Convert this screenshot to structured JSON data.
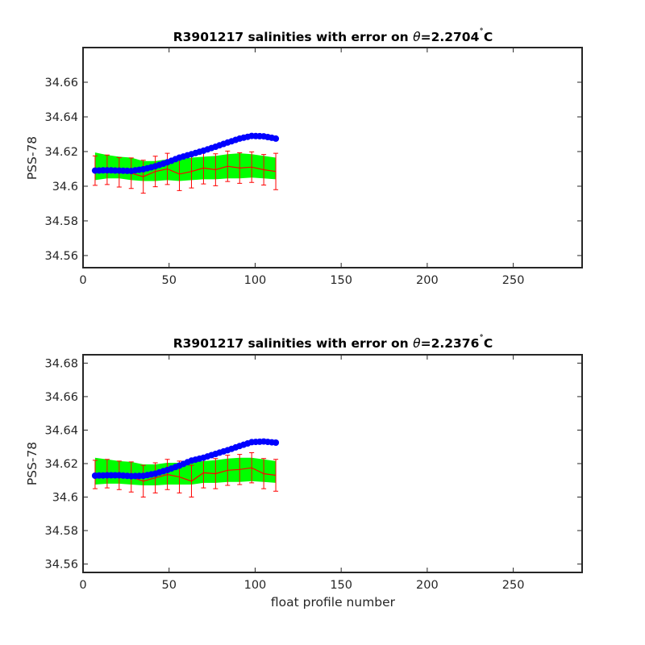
{
  "colors": {
    "background": "#ffffff",
    "axis": "#262626",
    "uncertainty_band": "#00ff00",
    "error_bars": "#ff0000",
    "mapped_line": "#ff0000",
    "float_points": "#0000ff"
  },
  "chart_data": [
    {
      "type": "line",
      "title": "R3901217 salinities with error on θ=2.2704˚C",
      "title_parts": {
        "prefix": "R3901217 salinities with error on ",
        "symbol": "θ",
        "value": "=2.2704",
        "degree": "˚",
        "unit": "C"
      },
      "xlabel": "",
      "ylabel": "PSS-78",
      "xlim": [
        0,
        290
      ],
      "ylim": [
        34.553,
        34.68
      ],
      "xticks": [
        0,
        50,
        100,
        150,
        200,
        250
      ],
      "xtick_labels": [
        "0",
        "50",
        "100",
        "150",
        "200",
        "250"
      ],
      "yticks": [
        34.56,
        34.58,
        34.6,
        34.62,
        34.64,
        34.66
      ],
      "ytick_labels": [
        "34.56",
        "34.58",
        "34.6",
        "34.62",
        "34.64",
        "34.66"
      ],
      "x": [
        7,
        14,
        21,
        28,
        35,
        42,
        49,
        56,
        63,
        70,
        77,
        84,
        91,
        98,
        105,
        112
      ],
      "series": [
        {
          "role": "float",
          "color": "#0000ff",
          "marker": "circle",
          "values": [
            34.609,
            34.6092,
            34.609,
            34.6088,
            34.6098,
            34.6115,
            34.6138,
            34.6165,
            34.6185,
            34.6205,
            34.6228,
            34.6252,
            34.6275,
            34.629,
            34.6288,
            34.6275
          ]
        },
        {
          "role": "mapped",
          "color": "#ff0000",
          "line": "solid",
          "values": [
            34.609,
            34.6095,
            34.608,
            34.6075,
            34.6055,
            34.6085,
            34.61,
            34.607,
            34.6085,
            34.6105,
            34.6095,
            34.6115,
            34.6105,
            34.611,
            34.6095,
            34.6085
          ],
          "error": [
            0.0085,
            0.0085,
            0.0085,
            0.0088,
            0.0095,
            0.0088,
            0.009,
            0.0095,
            0.0095,
            0.0092,
            0.0092,
            0.0088,
            0.0088,
            0.0088,
            0.0088,
            0.0105
          ]
        },
        {
          "role": "uncertainty_band",
          "color": "#00ff00",
          "upper": [
            34.6195,
            34.618,
            34.617,
            34.6165,
            34.6145,
            34.6145,
            34.6155,
            34.6155,
            34.6165,
            34.617,
            34.6175,
            34.6185,
            34.619,
            34.6185,
            34.6175,
            34.6165
          ],
          "lower": [
            34.6035,
            34.6045,
            34.6045,
            34.6035,
            34.603,
            34.603,
            34.6035,
            34.603,
            34.6035,
            34.604,
            34.604,
            34.6045,
            34.6045,
            34.605,
            34.6045,
            34.604
          ]
        }
      ]
    },
    {
      "type": "line",
      "title": "R3901217 salinities with error on θ=2.2376˚C",
      "title_parts": {
        "prefix": "R3901217 salinities with error on ",
        "symbol": "θ",
        "value": "=2.2376",
        "degree": "˚",
        "unit": "C"
      },
      "xlabel": "float profile number",
      "ylabel": "PSS-78",
      "xlim": [
        0,
        290
      ],
      "ylim": [
        34.555,
        34.685
      ],
      "xticks": [
        0,
        50,
        100,
        150,
        200,
        250
      ],
      "xtick_labels": [
        "0",
        "50",
        "100",
        "150",
        "200",
        "250"
      ],
      "yticks": [
        34.56,
        34.58,
        34.6,
        34.62,
        34.64,
        34.66,
        34.68
      ],
      "ytick_labels": [
        "34.56",
        "34.58",
        "34.6",
        "34.62",
        "34.64",
        "34.66",
        "34.68"
      ],
      "x": [
        7,
        14,
        21,
        28,
        35,
        42,
        49,
        56,
        63,
        70,
        77,
        84,
        91,
        98,
        105,
        112
      ],
      "series": [
        {
          "role": "float",
          "color": "#0000ff",
          "marker": "circle",
          "values": [
            34.6128,
            34.613,
            34.613,
            34.6125,
            34.6127,
            34.614,
            34.6162,
            34.6188,
            34.6218,
            34.6235,
            34.6258,
            34.628,
            34.6305,
            34.6328,
            34.6332,
            34.6325
          ]
        },
        {
          "role": "mapped",
          "color": "#ff0000",
          "line": "solid",
          "values": [
            34.6135,
            34.614,
            34.613,
            34.612,
            34.6095,
            34.6115,
            34.6135,
            34.612,
            34.6095,
            34.6145,
            34.614,
            34.616,
            34.6165,
            34.6175,
            34.614,
            34.613
          ],
          "error": [
            0.0085,
            0.0085,
            0.0085,
            0.009,
            0.0095,
            0.009,
            0.009,
            0.0095,
            0.0095,
            0.009,
            0.009,
            0.009,
            0.009,
            0.009,
            0.009,
            0.0095
          ]
        },
        {
          "role": "uncertainty_band",
          "color": "#00ff00",
          "upper": [
            34.6235,
            34.6225,
            34.6215,
            34.621,
            34.6195,
            34.6195,
            34.6205,
            34.6205,
            34.621,
            34.6215,
            34.622,
            34.623,
            34.6235,
            34.6235,
            34.6225,
            34.6215
          ],
          "lower": [
            34.6075,
            34.608,
            34.608,
            34.6075,
            34.607,
            34.607,
            34.6075,
            34.6075,
            34.6075,
            34.6085,
            34.6085,
            34.609,
            34.609,
            34.6095,
            34.609,
            34.6085
          ]
        }
      ]
    }
  ]
}
